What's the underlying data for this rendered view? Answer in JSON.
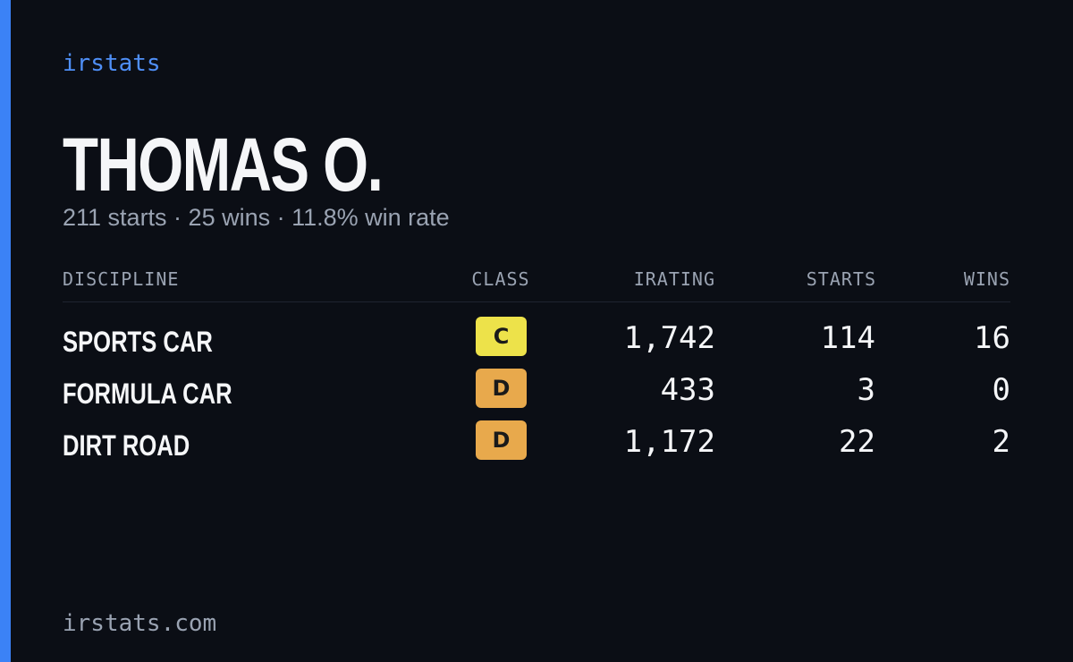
{
  "brand": "irstats",
  "name": "THOMAS O.",
  "summary": "211 starts · 25 wins · 11.8% win rate",
  "table": {
    "headers": [
      "DISCIPLINE",
      "CLASS",
      "IRATING",
      "STARTS",
      "WINS"
    ],
    "rows": [
      [
        "SPORTS CAR",
        "C",
        "1,742",
        "114",
        "16"
      ],
      [
        "FORMULA CAR",
        "D",
        "433",
        "3",
        "0"
      ],
      [
        "DIRT ROAD",
        "D",
        "1,172",
        "22",
        "2"
      ]
    ]
  },
  "footer": "irstats.com"
}
